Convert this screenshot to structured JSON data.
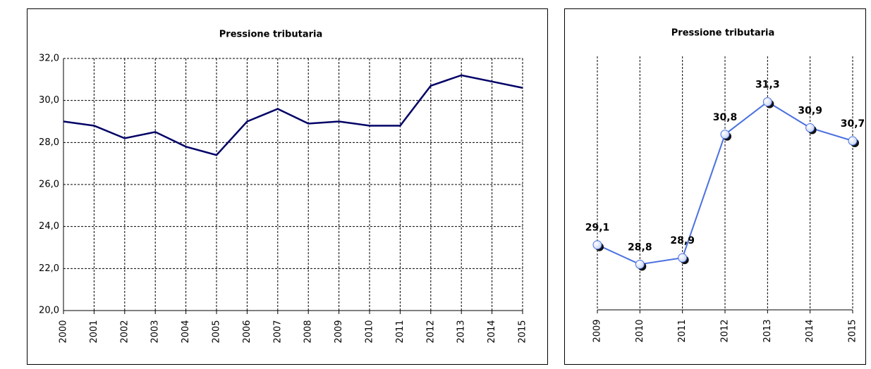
{
  "chart_data": [
    {
      "type": "line",
      "title": "Pressione tributaria",
      "categories": [
        "2000",
        "2001",
        "2002",
        "2003",
        "2004",
        "2005",
        "2006",
        "2007",
        "2008",
        "2009",
        "2010",
        "2011",
        "2012",
        "2013",
        "2014",
        "2015"
      ],
      "values": [
        29.0,
        28.8,
        28.2,
        28.5,
        27.8,
        27.4,
        29.0,
        29.6,
        28.9,
        29.0,
        28.8,
        28.8,
        30.7,
        31.2,
        30.9,
        30.6
      ],
      "color": "#000066",
      "ylim": [
        20,
        32
      ],
      "yticks": [
        {
          "value": 20,
          "label": "20,0"
        },
        {
          "value": 22,
          "label": "22,0"
        },
        {
          "value": 24,
          "label": "24,0"
        },
        {
          "value": 26,
          "label": "26,0"
        },
        {
          "value": 28,
          "label": "28,0"
        },
        {
          "value": 30,
          "label": "30,0"
        },
        {
          "value": 32,
          "label": "32,0"
        }
      ],
      "grid": true
    },
    {
      "type": "line",
      "title": "Pressione tributaria",
      "categories": [
        "2009",
        "2010",
        "2011",
        "2012",
        "2013",
        "2014",
        "2015"
      ],
      "values": [
        29.1,
        28.8,
        28.9,
        30.8,
        31.3,
        30.9,
        30.7
      ],
      "value_labels": [
        "29,1",
        "28,8",
        "28,9",
        "30,8",
        "31,3",
        "30,9",
        "30,7"
      ],
      "color": "#4a70e0",
      "markers": true,
      "grid": true
    }
  ]
}
